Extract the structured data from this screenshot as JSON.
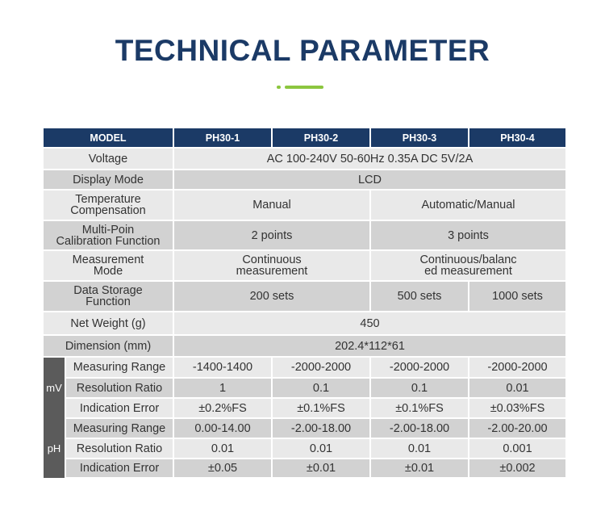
{
  "header": {
    "title": "TECHNICAL PARAMETER"
  },
  "table": {
    "columns": [
      "MODEL",
      "PH30-1",
      "PH30-2",
      "PH30-3",
      "PH30-4"
    ],
    "rows": [
      {
        "label": "Voltage",
        "cells": [
          "AC 100-240V 50-60Hz 0.35A  DC 5V/2A"
        ]
      },
      {
        "label": "Display Mode",
        "cells": [
          "LCD"
        ]
      },
      {
        "label": "Temperature\nCompensation",
        "cells": [
          "Manual",
          "Automatic/Manual"
        ]
      },
      {
        "label": "Multi-Poin\nCalibration Function",
        "cells": [
          "2 points",
          "3 points"
        ]
      },
      {
        "label": "Measurement\nMode",
        "cells": [
          "Continuous\nmeasurement",
          "Continuous/balanc\ned measurement"
        ]
      },
      {
        "label": "Data Storage\nFunction",
        "cells": [
          "200 sets",
          "500 sets",
          "1000 sets"
        ]
      },
      {
        "label": "Net Weight (g)",
        "cells": [
          "450"
        ]
      },
      {
        "label": "Dimension (mm)",
        "cells": [
          "202.4*112*61"
        ]
      },
      {
        "group": "mV",
        "label": "Measuring Range",
        "cells": [
          "-1400-1400",
          "-2000-2000",
          "-2000-2000",
          "-2000-2000"
        ]
      },
      {
        "label": "Resolution Ratio",
        "cells": [
          "1",
          "0.1",
          "0.1",
          "0.01"
        ]
      },
      {
        "label": "Indication Error",
        "cells": [
          "±0.2%FS",
          "±0.1%FS",
          "±0.1%FS",
          "±0.03%FS"
        ]
      },
      {
        "group": "pH",
        "label": "Measuring Range",
        "cells": [
          "0.00-14.00",
          "-2.00-18.00",
          "-2.00-18.00",
          "-2.00-20.00"
        ]
      },
      {
        "label": "Resolution Ratio",
        "cells": [
          "0.01",
          "0.01",
          "0.01",
          "0.001"
        ]
      },
      {
        "label": "Indication Error",
        "cells": [
          "±0.05",
          "±0.01",
          "±0.01",
          "±0.002"
        ]
      }
    ]
  }
}
